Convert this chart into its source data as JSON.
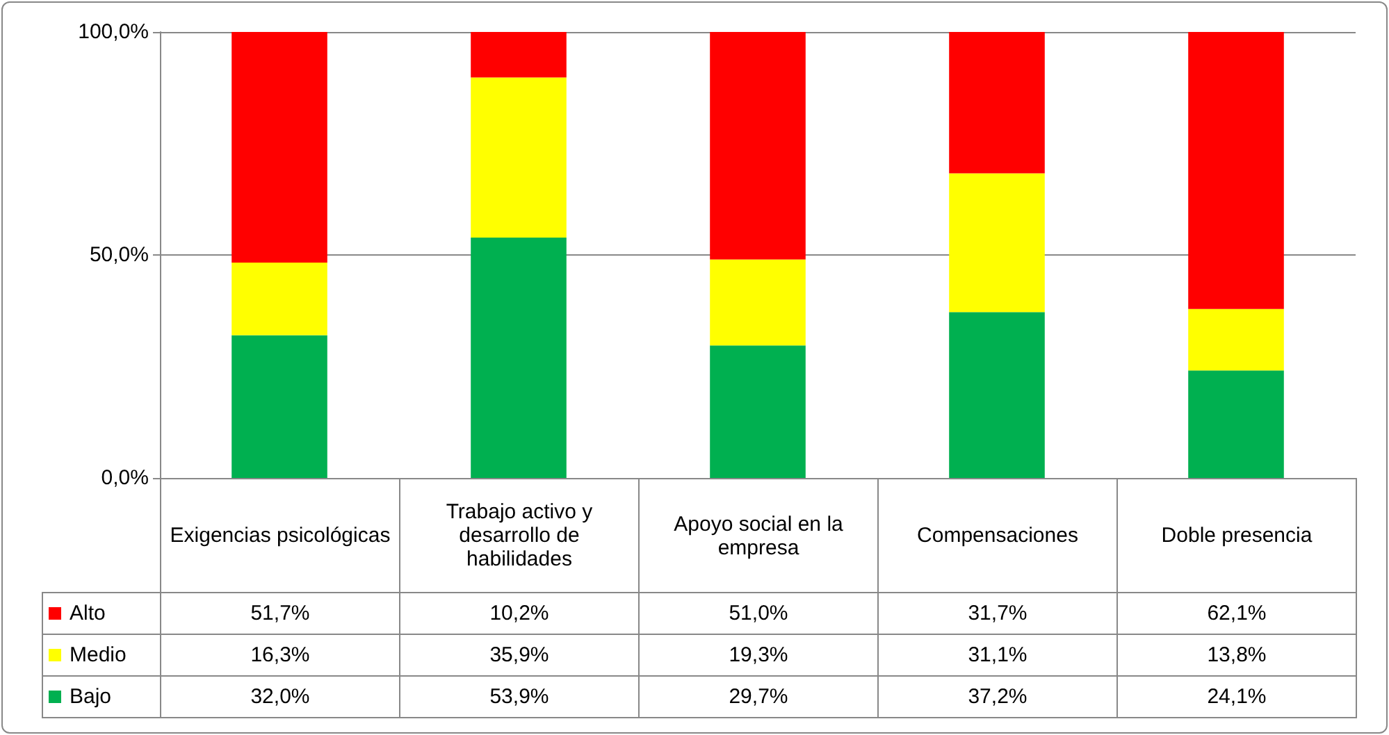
{
  "chart_data": {
    "type": "bar",
    "stacked": true,
    "categories": [
      "Exigencias psicológicas",
      "Trabajo activo y desarrollo de habilidades",
      "Apoyo social en la empresa",
      "Compensaciones",
      "Doble presencia"
    ],
    "series": [
      {
        "name": "Bajo",
        "color": "#00b050",
        "values": [
          32.0,
          53.9,
          29.7,
          37.2,
          24.1
        ],
        "value_labels": [
          "32,0%",
          "53,9%",
          "29,7%",
          "37,2%",
          "24,1%"
        ]
      },
      {
        "name": "Medio",
        "color": "#ffff00",
        "values": [
          16.3,
          35.9,
          19.3,
          31.1,
          13.8
        ],
        "value_labels": [
          "16,3%",
          "35,9%",
          "19,3%",
          "31,1%",
          "13,8%"
        ]
      },
      {
        "name": "Alto",
        "color": "#ff0000",
        "values": [
          51.7,
          10.2,
          51.0,
          31.7,
          62.1
        ],
        "value_labels": [
          "51,7%",
          "10,2%",
          "51,0%",
          "31,7%",
          "62,1%"
        ]
      }
    ],
    "ylim": [
      0,
      100
    ],
    "yticks": [
      {
        "value": 0,
        "label": "0,0%"
      },
      {
        "value": 50,
        "label": "50,0%"
      },
      {
        "value": 100,
        "label": "100,0%"
      }
    ],
    "grid": "y",
    "legend": "bottom"
  }
}
